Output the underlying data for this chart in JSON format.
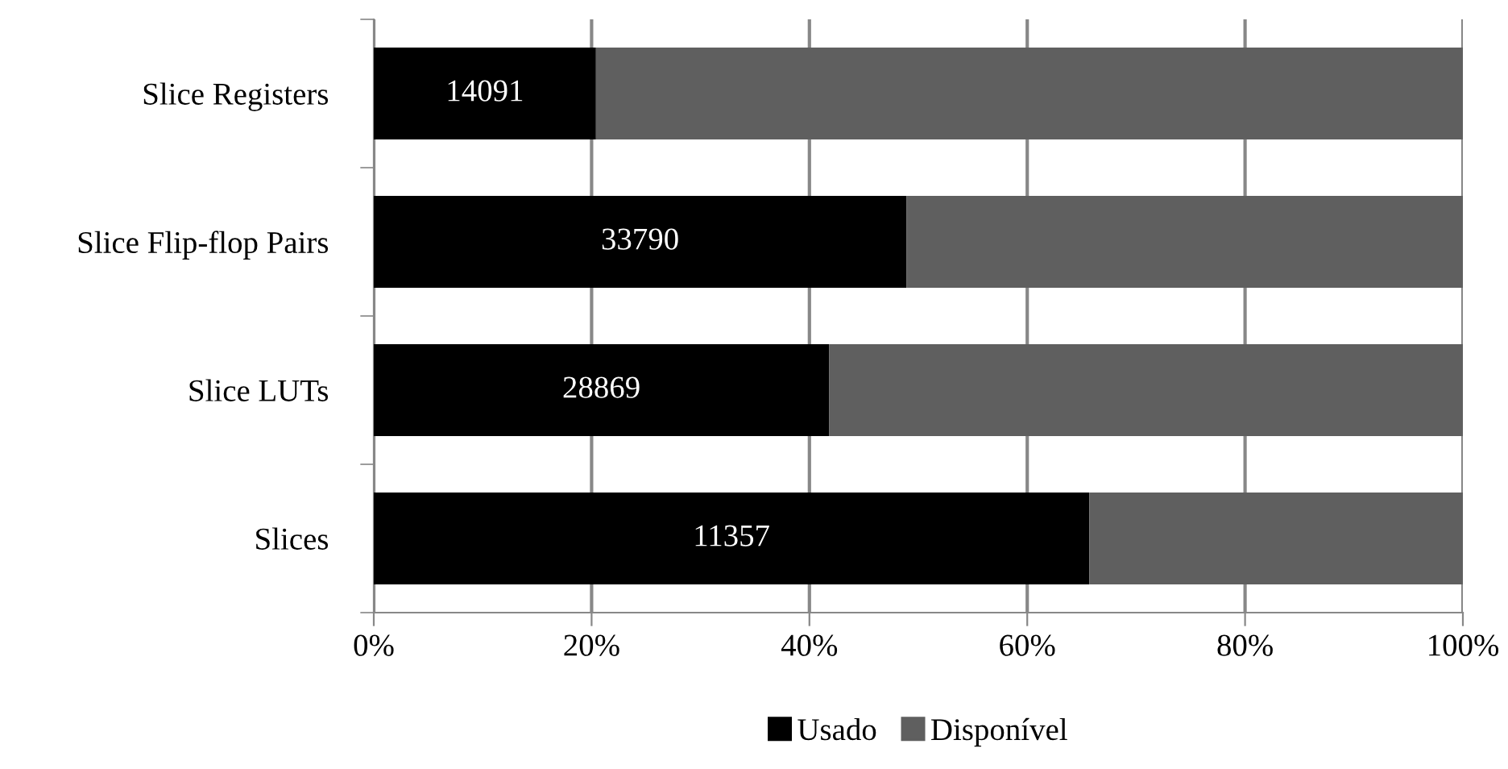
{
  "chart_data": {
    "type": "bar",
    "orientation": "horizontal",
    "stacked": true,
    "categories": [
      "Slice Registers",
      "Slice Flip-flop Pairs",
      "Slice LUTs",
      "Slices"
    ],
    "series": [
      {
        "name": "Usado",
        "color": "#000000",
        "values": [
          20.4,
          48.9,
          41.8,
          65.7
        ]
      },
      {
        "name": "Disponível",
        "color": "#5f5f5f",
        "values": [
          79.6,
          51.1,
          58.2,
          34.3
        ]
      }
    ],
    "xlim": [
      0,
      100
    ],
    "xticks": [
      {
        "value": 0,
        "label": "0%"
      },
      {
        "value": 20,
        "label": "20%"
      },
      {
        "value": 40,
        "label": "40%"
      },
      {
        "value": 60,
        "label": "60%"
      },
      {
        "value": 80,
        "label": "80%"
      },
      {
        "value": 100,
        "label": "100%"
      }
    ],
    "annotations": [
      "14091",
      "33790",
      "28869",
      "11357"
    ],
    "grid": "x",
    "legend": "bottom"
  }
}
